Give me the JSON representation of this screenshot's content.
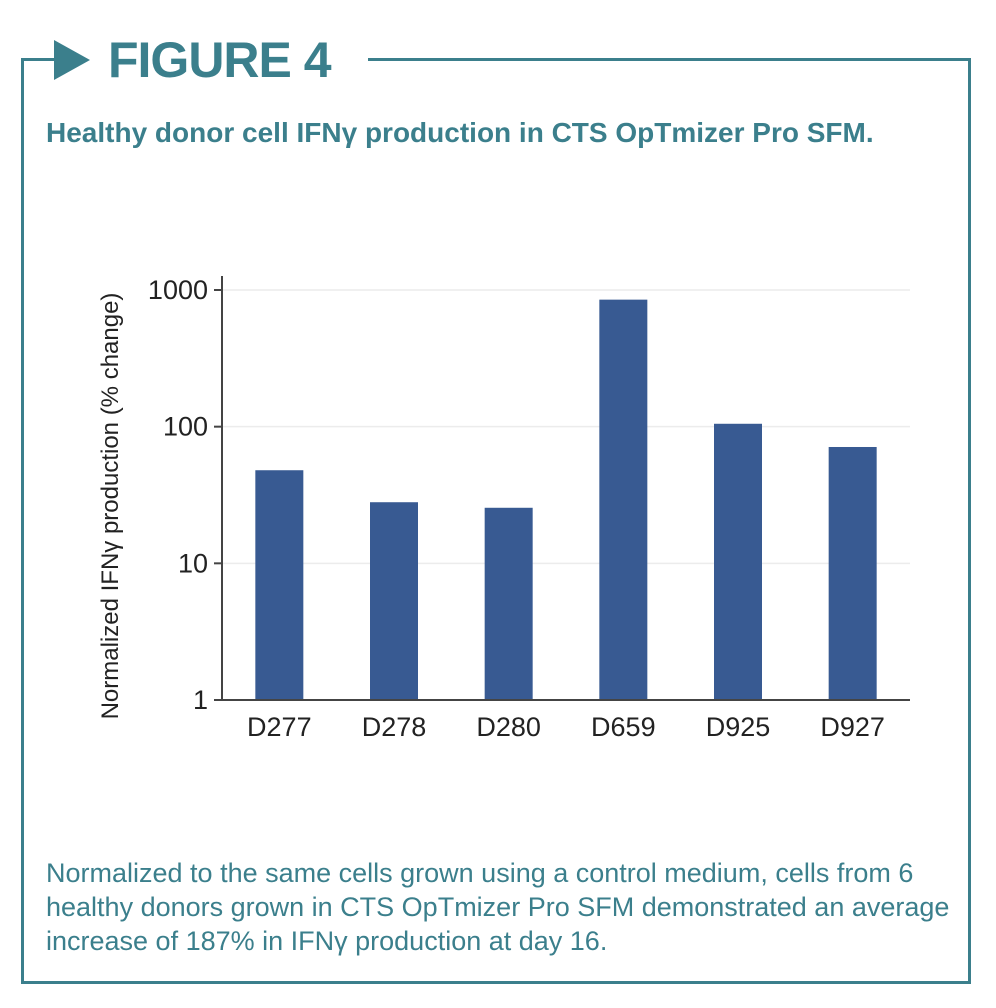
{
  "figure_label": "FIGURE 4",
  "title": "Healthy donor cell IFNγ production in CTS OpTmizer Pro SFM.",
  "caption": "Normalized to the same cells grown using a control medium, cells from 6 healthy donors grown in CTS OpTmizer Pro SFM demonstrated an average increase of 187% in IFNγ production at day 16.",
  "colors": {
    "accent": "#3b7f8c",
    "bar": "#385a92",
    "grid": "#ececec"
  },
  "chart_data": {
    "type": "bar",
    "categories": [
      "D277",
      "D278",
      "D280",
      "D659",
      "D925",
      "D927"
    ],
    "values": [
      48,
      28,
      25.5,
      850,
      105,
      71
    ],
    "ylabel": "Normalized IFNγ production (% change)",
    "yscale": "log",
    "ylim": [
      1,
      1000
    ],
    "yticks": [
      1,
      10,
      100,
      1000
    ],
    "ytick_labels": [
      "1",
      "10",
      "100",
      "1000"
    ],
    "grid": true,
    "legend": "none"
  }
}
